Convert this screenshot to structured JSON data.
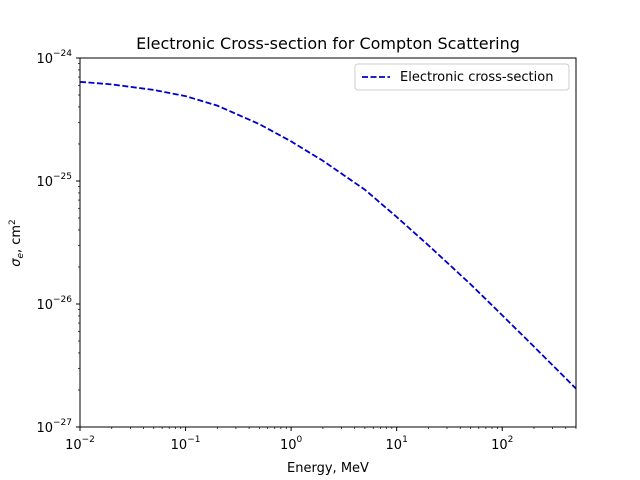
{
  "chart_data": {
    "type": "line",
    "title": "Electronic Cross-section for Compton Scattering",
    "xlabel": "Energy, MeV",
    "ylabel_base": "σ",
    "ylabel_sub": "e",
    "ylabel_unit": ", cm",
    "ylabel_unit_sup": "2",
    "xscale": "log",
    "yscale": "log",
    "xlim": [
      0.01,
      500
    ],
    "ylim": [
      1e-27,
      1e-24
    ],
    "x_ticks": [
      {
        "value": 0.01,
        "base": "10",
        "exp": "−2"
      },
      {
        "value": 0.1,
        "base": "10",
        "exp": "−1"
      },
      {
        "value": 1,
        "base": "10",
        "exp": "0"
      },
      {
        "value": 10,
        "base": "10",
        "exp": "1"
      },
      {
        "value": 100,
        "base": "10",
        "exp": "2"
      }
    ],
    "y_ticks": [
      {
        "value": 1e-27,
        "base": "10",
        "exp": "−27"
      },
      {
        "value": 1e-26,
        "base": "10",
        "exp": "−26"
      },
      {
        "value": 1e-25,
        "base": "10",
        "exp": "−25"
      },
      {
        "value": 1e-24,
        "base": "10",
        "exp": "−24"
      }
    ],
    "legend_position": "upper-right",
    "series": [
      {
        "name": "Electronic cross-section",
        "color": "#0000cc",
        "linestyle": "dashed",
        "x": [
          0.01,
          0.02,
          0.05,
          0.1,
          0.2,
          0.5,
          1,
          2,
          5,
          10,
          20,
          50,
          100,
          200,
          500
        ],
        "y": [
          6.4e-25,
          6.1e-25,
          5.5e-25,
          4.9e-25,
          4.1e-25,
          2.9e-25,
          2.1e-25,
          1.46e-25,
          8.5e-26,
          5.1e-26,
          3e-26,
          1.45e-26,
          8.1e-27,
          4.5e-27,
          2.05e-27
        ]
      }
    ]
  }
}
